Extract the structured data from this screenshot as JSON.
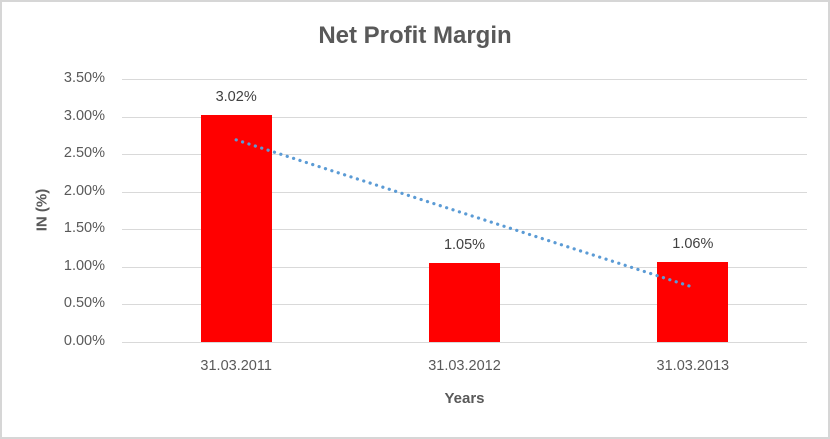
{
  "chart_data": {
    "type": "bar",
    "title": "Net Profit Margin",
    "categories": [
      "31.03.2011",
      "31.03.2012",
      "31.03.2013"
    ],
    "values": [
      3.02,
      1.05,
      1.06
    ],
    "data_labels": [
      "3.02%",
      "1.05%",
      "1.06%"
    ],
    "xlabel": "Years",
    "ylabel": "IN (%)",
    "ylim": [
      0,
      3.5
    ],
    "ytick_step": 0.5,
    "ytick_labels": [
      "0.00%",
      "0.50%",
      "1.00%",
      "1.50%",
      "2.00%",
      "2.50%",
      "3.00%",
      "3.50%"
    ],
    "grid": true,
    "legend": "none",
    "trendline": {
      "type": "linear",
      "style": "dotted",
      "endpoint_values": [
        2.69,
        0.73
      ]
    },
    "colors": {
      "bar": "#ff0000",
      "trendline": "#5b9bd5",
      "gridline": "#d9d9d9",
      "title": "#595959",
      "axis_title": "#595959",
      "tick_label": "#595959",
      "data_label": "#404040",
      "border": "#d6d6d6",
      "background": "#ffffff"
    }
  }
}
